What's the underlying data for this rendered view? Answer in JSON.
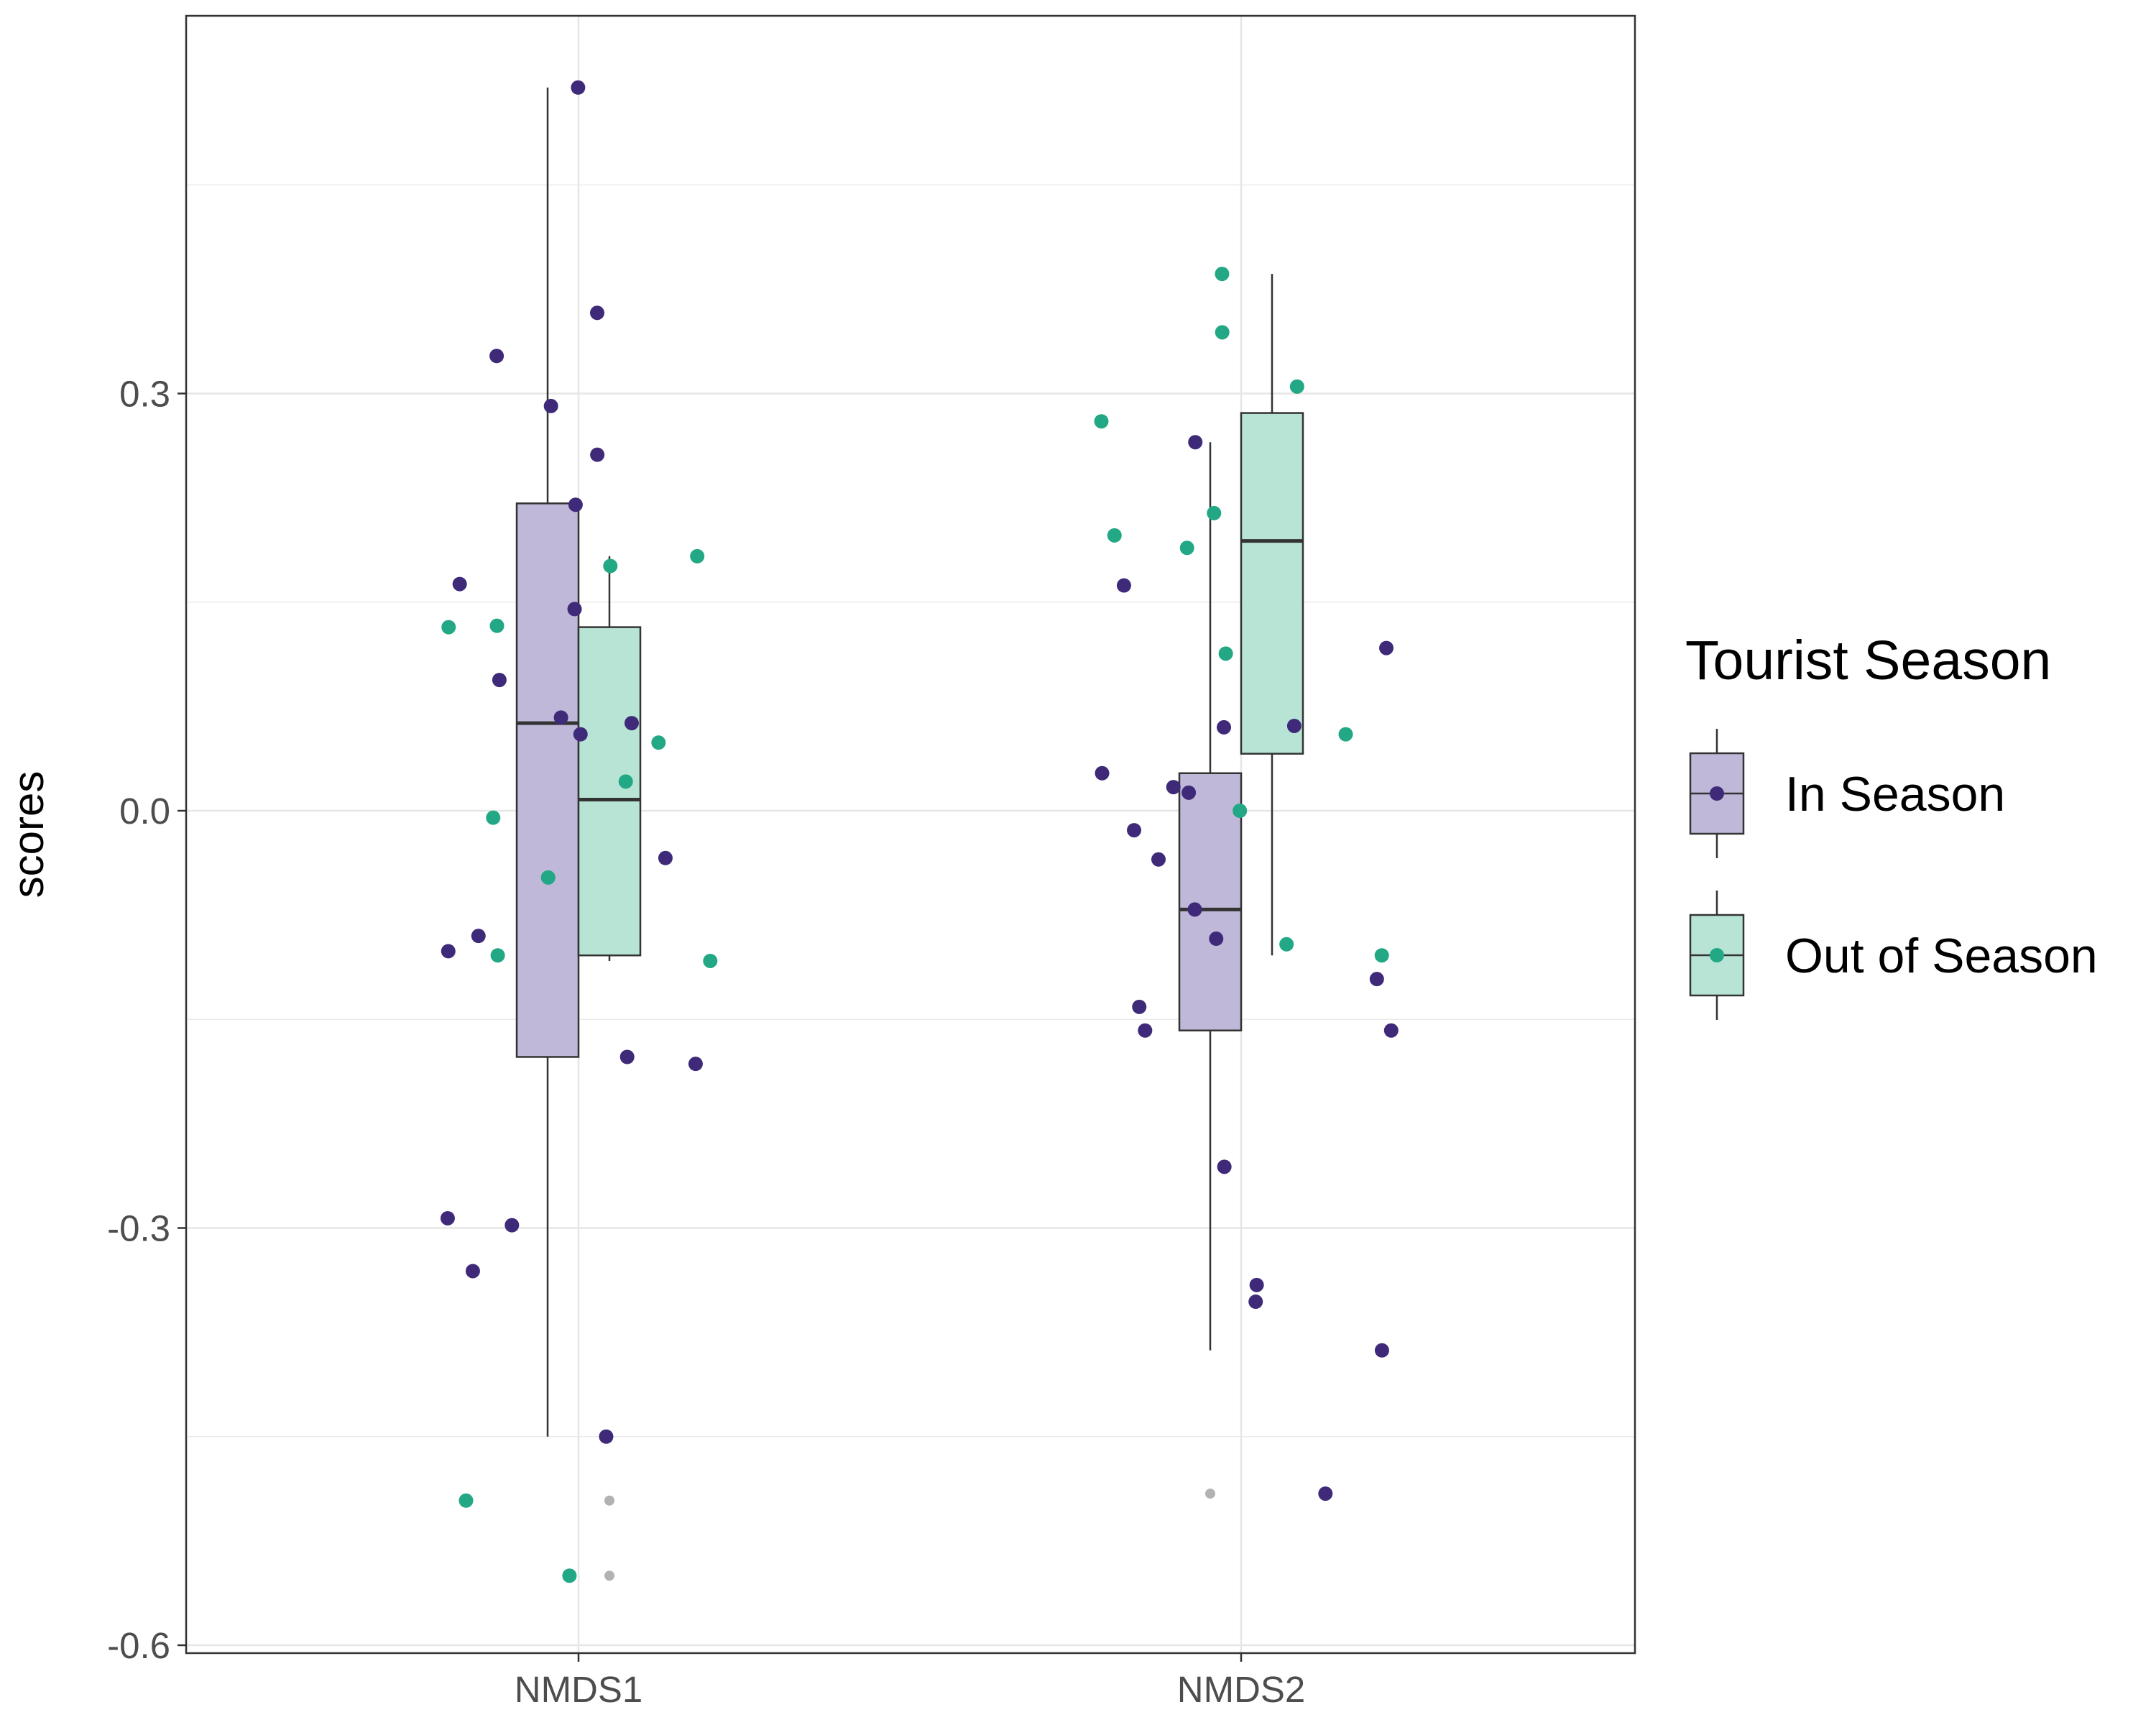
{
  "chart_data": {
    "type": "boxplot",
    "title": "",
    "xlabel": "",
    "ylabel": "scores",
    "ylim": [
      -0.6,
      0.75
    ],
    "yticks": [
      -0.6,
      -0.3,
      0.0,
      0.3
    ],
    "ytick_labels": [
      "-0.6",
      "-0.3",
      "0.0",
      "0.3"
    ],
    "categories": [
      "NMDS1",
      "NMDS2"
    ],
    "grid": true,
    "legend": {
      "title": "Tourist Season",
      "position": "right",
      "entries": [
        "In Season",
        "Out of Season"
      ]
    },
    "series": [
      {
        "name": "In Season",
        "color": "#3f2a7a",
        "fill": "#bfb8d8",
        "boxes": [
          {
            "category": "NMDS1",
            "lower_whisker": -0.45,
            "q1": -0.177,
            "median": 0.063,
            "q3": 0.221,
            "upper_whisker": 0.52,
            "outliers": []
          },
          {
            "category": "NMDS2",
            "lower_whisker": -0.388,
            "q1": -0.158,
            "median": -0.071,
            "q3": 0.027,
            "upper_whisker": 0.265,
            "outliers": [
              -0.491
            ]
          }
        ],
        "points": [
          {
            "category": "NMDS1",
            "y": 0.22
          },
          {
            "category": "NMDS1",
            "y": 0.256
          },
          {
            "category": "NMDS1",
            "y": 0.163
          },
          {
            "category": "NMDS1",
            "y": 0.094
          },
          {
            "category": "NMDS1",
            "y": 0.067
          },
          {
            "category": "NMDS1",
            "y": 0.055
          },
          {
            "category": "NMDS1",
            "y": -0.101
          },
          {
            "category": "NMDS1",
            "y": -0.182
          },
          {
            "category": "NMDS1",
            "y": -0.45
          },
          {
            "category": "NMDS1",
            "y": 0.291
          },
          {
            "category": "NMDS1",
            "y": -0.298
          },
          {
            "category": "NMDS1",
            "y": -0.034
          },
          {
            "category": "NMDS1",
            "y": -0.177
          },
          {
            "category": "NMDS1",
            "y": -0.293
          },
          {
            "category": "NMDS1",
            "y": 0.52
          },
          {
            "category": "NMDS1",
            "y": 0.327
          },
          {
            "category": "NMDS1",
            "y": 0.063
          },
          {
            "category": "NMDS1",
            "y": -0.331
          },
          {
            "category": "NMDS1",
            "y": 0.358
          },
          {
            "category": "NMDS1",
            "y": 0.145
          },
          {
            "category": "NMDS1",
            "y": -0.09
          },
          {
            "category": "NMDS2",
            "y": 0.027
          },
          {
            "category": "NMDS2",
            "y": -0.121
          },
          {
            "category": "NMDS2",
            "y": 0.117
          },
          {
            "category": "NMDS2",
            "y": 0.162
          },
          {
            "category": "NMDS2",
            "y": 0.06
          },
          {
            "category": "NMDS2",
            "y": -0.388
          },
          {
            "category": "NMDS2",
            "y": -0.158
          },
          {
            "category": "NMDS2",
            "y": -0.092
          },
          {
            "category": "NMDS2",
            "y": -0.341
          },
          {
            "category": "NMDS2",
            "y": 0.061
          },
          {
            "category": "NMDS2",
            "y": 0.017
          },
          {
            "category": "NMDS2",
            "y": -0.141
          },
          {
            "category": "NMDS2",
            "y": -0.158
          },
          {
            "category": "NMDS2",
            "y": -0.256
          },
          {
            "category": "NMDS2",
            "y": -0.035
          },
          {
            "category": "NMDS2",
            "y": -0.353
          },
          {
            "category": "NMDS2",
            "y": 0.013
          },
          {
            "category": "NMDS2",
            "y": -0.014
          },
          {
            "category": "NMDS2",
            "y": -0.491
          },
          {
            "category": "NMDS2",
            "y": 0.265
          },
          {
            "category": "NMDS2",
            "y": -0.071
          }
        ]
      },
      {
        "name": "Out of Season",
        "color": "#22a884",
        "fill": "#b8e4d6",
        "boxes": [
          {
            "category": "NMDS1",
            "lower_whisker": -0.108,
            "q1": -0.104,
            "median": 0.008,
            "q3": 0.132,
            "upper_whisker": 0.183,
            "outliers": [
              -0.496,
              -0.55
            ]
          },
          {
            "category": "NMDS2",
            "lower_whisker": -0.104,
            "q1": 0.041,
            "median": 0.194,
            "q3": 0.286,
            "upper_whisker": 0.386,
            "outliers": []
          }
        ],
        "points": [
          {
            "category": "NMDS1",
            "y": 0.132
          },
          {
            "category": "NMDS1",
            "y": -0.108
          },
          {
            "category": "NMDS1",
            "y": -0.104
          },
          {
            "category": "NMDS1",
            "y": 0.183
          },
          {
            "category": "NMDS1",
            "y": -0.55
          },
          {
            "category": "NMDS1",
            "y": 0.133
          },
          {
            "category": "NMDS1",
            "y": 0.176
          },
          {
            "category": "NMDS1",
            "y": -0.048
          },
          {
            "category": "NMDS1",
            "y": 0.049
          },
          {
            "category": "NMDS1",
            "y": 0.021
          },
          {
            "category": "NMDS1",
            "y": -0.496
          },
          {
            "category": "NMDS1",
            "y": -0.005
          },
          {
            "category": "NMDS2",
            "y": 0.113
          },
          {
            "category": "NMDS2",
            "y": 0.198
          },
          {
            "category": "NMDS2",
            "y": 0.28
          },
          {
            "category": "NMDS2",
            "y": 0.214
          },
          {
            "category": "NMDS2",
            "y": 0.305
          },
          {
            "category": "NMDS2",
            "y": -0.096
          },
          {
            "category": "NMDS2",
            "y": -0.104
          },
          {
            "category": "NMDS2",
            "y": 0.189
          },
          {
            "category": "NMDS2",
            "y": 0.386
          },
          {
            "category": "NMDS2",
            "y": 0.0
          },
          {
            "category": "NMDS2",
            "y": 0.344
          },
          {
            "category": "NMDS2",
            "y": 0.055
          }
        ]
      }
    ]
  }
}
